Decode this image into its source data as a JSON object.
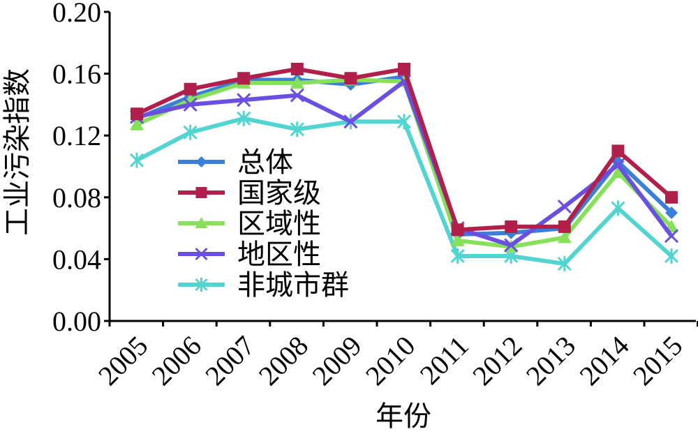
{
  "chart_data": {
    "type": "line",
    "xlabel": "年份",
    "ylabel": "工业污染指数",
    "categories": [
      "2005",
      "2006",
      "2007",
      "2008",
      "2009",
      "2010",
      "2011",
      "2012",
      "2013",
      "2014",
      "2015"
    ],
    "ylim": [
      0,
      0.2
    ],
    "yticks": [
      "0.00",
      "0.04",
      "0.08",
      "0.12",
      "0.16",
      "0.20"
    ],
    "grid": false,
    "legend_position": "center-left",
    "series": [
      {
        "name": "总体",
        "color": "#3a7fd9",
        "marker": "diamond",
        "values": [
          0.131,
          0.145,
          0.156,
          0.156,
          0.153,
          0.158,
          0.056,
          0.057,
          0.06,
          0.103,
          0.07
        ]
      },
      {
        "name": "国家级",
        "color": "#b0204a",
        "marker": "square",
        "values": [
          0.134,
          0.15,
          0.157,
          0.163,
          0.157,
          0.163,
          0.059,
          0.061,
          0.061,
          0.11,
          0.08
        ]
      },
      {
        "name": "区域性",
        "color": "#86e05a",
        "marker": "triangle",
        "values": [
          0.127,
          0.143,
          0.154,
          0.154,
          0.156,
          0.155,
          0.052,
          0.048,
          0.054,
          0.096,
          0.061
        ]
      },
      {
        "name": "地区性",
        "color": "#6a4fe0",
        "marker": "x",
        "values": [
          0.132,
          0.14,
          0.143,
          0.146,
          0.129,
          0.155,
          0.06,
          0.049,
          0.074,
          0.101,
          0.055
        ]
      },
      {
        "name": "非城市群",
        "color": "#52d4d0",
        "marker": "asterisk",
        "values": [
          0.104,
          0.122,
          0.131,
          0.124,
          0.129,
          0.129,
          0.042,
          0.042,
          0.037,
          0.073,
          0.042
        ]
      }
    ]
  }
}
